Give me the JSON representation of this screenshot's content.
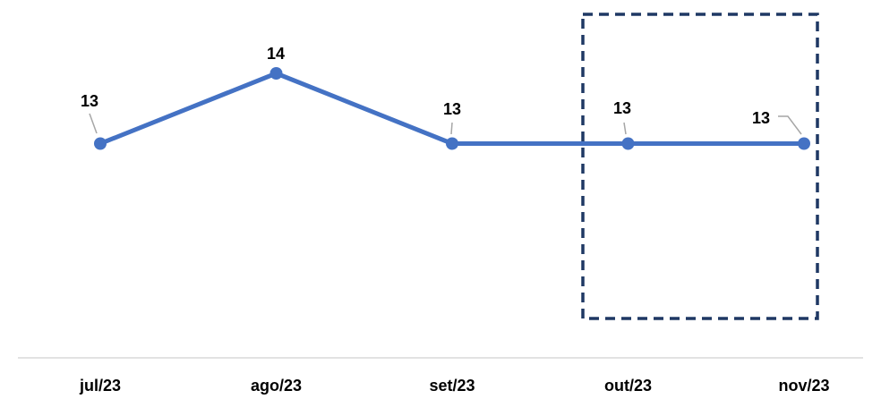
{
  "chart_data": {
    "type": "line",
    "title": "",
    "xlabel": "",
    "ylabel": "",
    "categories": [
      "jul/23",
      "ago/23",
      "set/23",
      "out/23",
      "nov/23"
    ],
    "series": [
      {
        "values": [
          13,
          14,
          13,
          13,
          13
        ]
      }
    ],
    "data_labels": [
      "13",
      "14",
      "13",
      "13",
      "13"
    ],
    "ylim": [
      12,
      14
    ],
    "grid": false,
    "legend": "none",
    "highlight_categories": [
      "out/23",
      "nov/23"
    ],
    "colors": {
      "series": "#4472C4",
      "highlight_box": "#1F3864",
      "axis": "#D9D9D9",
      "leader": "#A6A6A6"
    }
  }
}
